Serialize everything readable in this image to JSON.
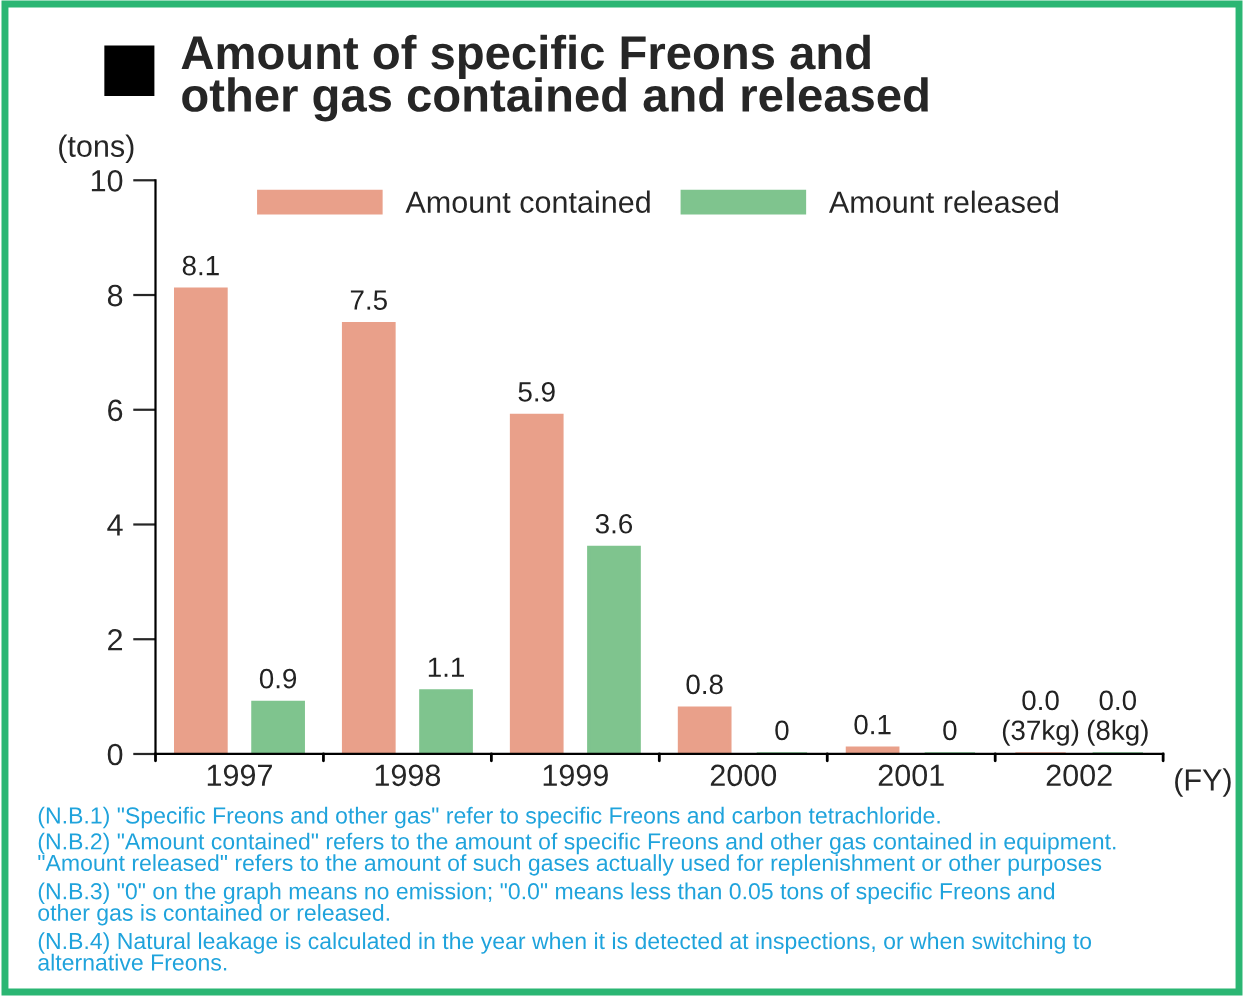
{
  "chart_data": {
    "type": "bar",
    "title": "Amount of specific Freons and\nother gas contained and released",
    "ylabel": "(tons)",
    "xlabel": "(FY)",
    "categories": [
      "1997",
      "1998",
      "1999",
      "2000",
      "2001",
      "2002"
    ],
    "series": [
      {
        "name": "Amount contained",
        "color": "#e9a08a",
        "values": [
          8.1,
          7.5,
          5.9,
          0.8,
          0.1,
          0
        ],
        "value_labels": [
          "8.1",
          "7.5",
          "5.9",
          "0.8",
          "0.1",
          "0.0\n(37kg)"
        ]
      },
      {
        "name": "Amount released",
        "color": "#7fc48e",
        "values": [
          0.9,
          1.1,
          3.6,
          0,
          0,
          0
        ],
        "value_labels": [
          "0.9",
          "1.1",
          "3.6",
          "0",
          "0",
          "0.0\n(8kg)"
        ]
      }
    ],
    "ylim": [
      0,
      10
    ],
    "yticks": [
      0,
      2,
      4,
      6,
      8,
      10
    ],
    "grid": false,
    "legend": "top",
    "annotations": [
      "(N.B.1) \"Specific Freons and other gas\" refer to specific Freons and carbon tetrachloride.",
      "(N.B.2) \"Amount contained\" refers to the amount of specific Freons and other gas contained in equipment.\n\"Amount released\" refers to the amount of such gases actually used for replenishment or other purposes",
      "(N.B.3) \"0\" on the graph means no emission; \"0.0\" means less than 0.05 tons of specific Freons and\nother gas is contained or released.",
      "(N.B.4) Natural leakage is calculated in the year when it is detected at inspections, or when switching to\nalternative Freons."
    ]
  }
}
